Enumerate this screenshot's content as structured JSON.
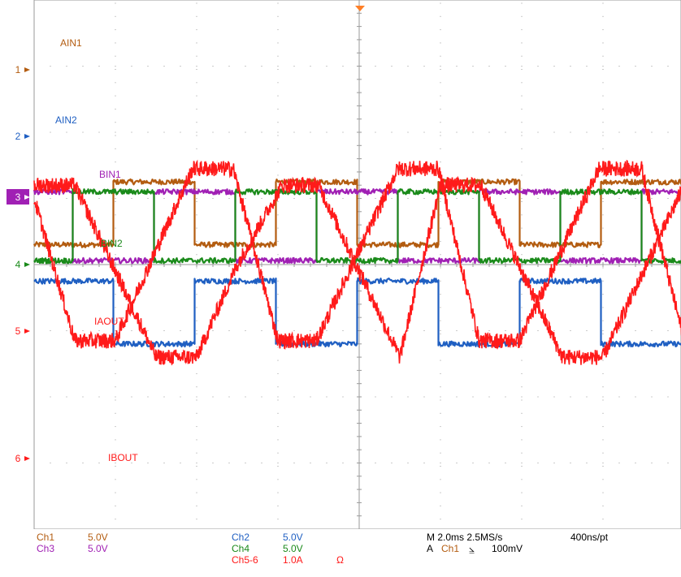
{
  "chart_data": {
    "type": "line",
    "title": "",
    "grid": true,
    "time_scale": "M 2.0ms",
    "x_unit": "ms",
    "x_range_ms": [
      0,
      20
    ],
    "period_ms": 8,
    "cursor_x_ms": 9.75,
    "series": [
      {
        "name": "AIN1",
        "marker": "1",
        "color": "#b35c10",
        "shape": "square",
        "high_div": 1.25,
        "low_div": 0.3,
        "edges_ms": [
          1.95,
          3.95,
          5.95,
          7.95,
          9.95,
          11.95,
          13.95,
          15.95,
          17.95,
          19.95
        ],
        "start_level": "low",
        "noise_div": 0.04
      },
      {
        "name": "AIN2",
        "marker": "2",
        "color": "#1f5fc2",
        "shape": "square",
        "high_div": -0.25,
        "low_div": -1.2,
        "edges_ms": [
          1.95,
          3.95,
          5.95,
          7.95,
          9.95,
          11.95,
          13.95,
          15.95,
          17.95,
          19.95
        ],
        "start_level": "high",
        "noise_div": 0.04
      },
      {
        "name": "BIN1",
        "marker": "3",
        "color": "#a020b4",
        "shape": "square",
        "high_div": 1.1,
        "low_div": 0.06,
        "edges_ms": [
          0.95,
          2.95,
          4.95,
          6.95,
          8.95,
          10.95,
          12.95,
          14.95,
          16.95,
          18.95
        ],
        "start_level": "high",
        "noise_div": 0.04
      },
      {
        "name": "BIN2",
        "marker": "4",
        "color": "#1a8a1a",
        "shape": "square",
        "high_div": 1.1,
        "low_div": 0.06,
        "edges_ms": [
          0.95,
          2.95,
          4.95,
          6.95,
          8.95,
          10.95,
          12.95,
          14.95,
          16.95,
          18.95
        ],
        "start_level": "low",
        "noise_div": 0.04
      },
      {
        "name": "IAOUT",
        "marker": "5",
        "color": "#ff1a1a",
        "shape": "trapezoid",
        "max_div": 1.45,
        "min_div": -1.15,
        "points_ms": [
          [
            0,
            1.0
          ],
          [
            1.0,
            -1.15
          ],
          [
            2.0,
            -1.15
          ],
          [
            3.9,
            1.45
          ],
          [
            4.9,
            1.45
          ],
          [
            6.0,
            -1.15
          ],
          [
            6.95,
            -1.15
          ],
          [
            8.95,
            1.45
          ],
          [
            9.95,
            1.45
          ],
          [
            10.95,
            -1.15
          ],
          [
            11.95,
            -1.15
          ],
          [
            13.9,
            1.45
          ],
          [
            14.95,
            1.45
          ],
          [
            16.0,
            -1.15
          ],
          [
            16.95,
            -1.15
          ],
          [
            18.9,
            1.45
          ],
          [
            20,
            1.45
          ]
        ],
        "noise_div": 0.12
      },
      {
        "name": "IBOUT",
        "marker": "6",
        "color": "#ff1a1a",
        "shape": "trapezoid",
        "max_div": 1.2,
        "min_div": -1.4,
        "points_ms": [
          [
            0,
            1.2
          ],
          [
            1.0,
            1.2
          ],
          [
            2.0,
            -0.1
          ],
          [
            3.0,
            -1.4
          ],
          [
            4.0,
            -1.4
          ],
          [
            5.0,
            0.0
          ],
          [
            6.1,
            1.2
          ],
          [
            7.0,
            1.2
          ],
          [
            9.0,
            -1.4
          ],
          [
            10.0,
            1.2
          ],
          [
            11.0,
            1.2
          ],
          [
            13.0,
            -1.4
          ],
          [
            14.0,
            -1.4
          ],
          [
            16.0,
            1.2
          ],
          [
            17.0,
            1.2
          ],
          [
            19.0,
            -1.4
          ],
          [
            20,
            -1.4
          ]
        ],
        "noise_div": 0.12
      }
    ],
    "channel_markers": [
      {
        "label": "1",
        "div": 5.0
      },
      {
        "label": "2",
        "div": 3.12
      },
      {
        "label": "3",
        "div": 2.0,
        "highlight": true
      },
      {
        "label": "4",
        "div": 0.0
      },
      {
        "label": "5",
        "div": -1.0
      },
      {
        "label": "6",
        "div": -3.0
      }
    ]
  },
  "readout": {
    "ch1": "Ch1",
    "ch1_scale": "5.0V",
    "ch3": "Ch3",
    "ch3_scale": "5.0V",
    "ch2": "Ch2",
    "ch2_scale": "5.0V",
    "ch4": "Ch4",
    "ch4_scale": "5.0V",
    "ch56": "Ch5-6",
    "ch56_scale": "1.0A",
    "ch56_unit": "Ω",
    "timebase": "M 2.0ms 2.5MS/s",
    "resolution": "400ns/pt",
    "trigger_a": "A",
    "trigger_ch": "Ch1",
    "trigger_slope": "⦥",
    "trigger_level": "100mV"
  },
  "colors": {
    "ch1": "#b35c10",
    "ch2": "#1f5fc2",
    "ch3": "#a020b4",
    "ch4": "#1a8a1a",
    "math": "#ff1a1a",
    "grid": "#9a9a9a",
    "trigger": "#ff7f27"
  }
}
